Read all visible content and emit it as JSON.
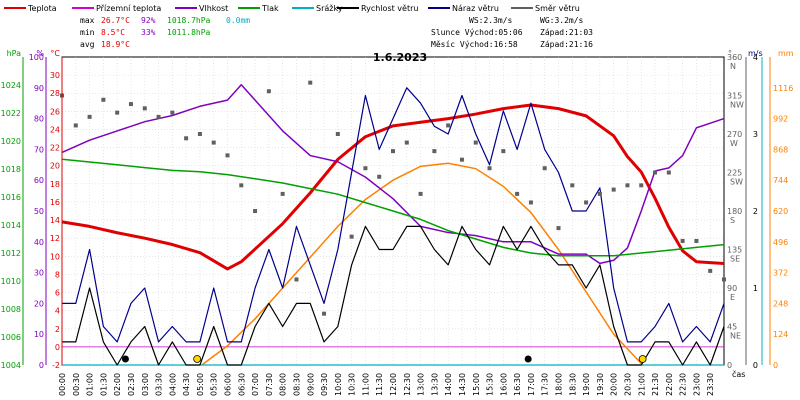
{
  "chart_data": {
    "type": "line",
    "title": "1.6.2023",
    "grid": true,
    "legend": [
      {
        "name": "Teplota",
        "color": "#e00000"
      },
      {
        "name": "Přízemní teplota",
        "color": "#d000d0"
      },
      {
        "name": "Vlhkost",
        "color": "#8000c0"
      },
      {
        "name": "Tlak",
        "color": "#00a000"
      },
      {
        "name": "Srážky",
        "color": "#00b0c0"
      },
      {
        "name": "Rychlost větru",
        "color": "#000000"
      },
      {
        "name": "Náraz větru",
        "color": "#00008b"
      },
      {
        "name": "Směr větru",
        "color": "#606060"
      }
    ],
    "stats": {
      "max": {
        "label": "max",
        "temp": "26.7°C",
        "hum": "92%",
        "press": "1018.7hPa",
        "rain": "0.0mm"
      },
      "min": {
        "label": "min",
        "temp": "8.5°C",
        "hum": "33%",
        "press": "1011.8hPa"
      },
      "avg": {
        "label": "avg",
        "temp": "18.9°C"
      }
    },
    "wind_info": {
      "ws": "WS:2.3m/s",
      "wg": "WG:3.2m/s"
    },
    "sun_info": {
      "sunrise": "Slunce Východ:05:06",
      "sunset": "Západ:21:03"
    },
    "moon_info": {
      "moonrise": "Měsíc Východ:16:58",
      "moonset": "Západ:21:16"
    },
    "axes": {
      "hpa": {
        "label": "hPa",
        "ticks": [
          "1004",
          "1006",
          "1008",
          "1010",
          "1012",
          "1014",
          "1016",
          "1018",
          "1020",
          "1022",
          "1024"
        ],
        "range": [
          1004,
          1026
        ]
      },
      "percent": {
        "label": "%",
        "ticks": [
          "0",
          "10",
          "20",
          "30",
          "40",
          "50",
          "60",
          "70",
          "80",
          "90",
          "100"
        ],
        "range": [
          0,
          100
        ]
      },
      "celsius": {
        "label": "°C",
        "ticks": [
          "-2",
          "0",
          "2",
          "4",
          "6",
          "8",
          "10",
          "12",
          "14",
          "16",
          "18",
          "20",
          "22",
          "24",
          "26",
          "28",
          "30"
        ],
        "range": [
          -2,
          32
        ]
      },
      "direction": {
        "label": "°",
        "ticks": [
          "0",
          "45\nNE",
          "90\nE",
          "135\nSE",
          "180\nS",
          "225\nSW",
          "270\nW",
          "315\nNW",
          "360\nN"
        ],
        "range": [
          0,
          360
        ]
      },
      "ms": {
        "label": "m/s",
        "ticks": [
          "0",
          "1",
          "2",
          "3",
          "4"
        ],
        "range": [
          0,
          4
        ]
      },
      "mm": {
        "label": "mm",
        "ticks": [
          "0",
          "124",
          "248",
          "372",
          "496",
          "620",
          "744",
          "868",
          "992",
          "1116"
        ],
        "range": [
          0,
          1240
        ]
      },
      "x": {
        "label": "čas",
        "ticks": [
          "00:00",
          "00:30",
          "01:00",
          "01:30",
          "02:00",
          "02:30",
          "03:00",
          "03:30",
          "04:00",
          "04:30",
          "05:00",
          "05:30",
          "06:00",
          "06:30",
          "07:00",
          "07:30",
          "08:00",
          "08:30",
          "09:00",
          "09:30",
          "10:00",
          "10:30",
          "11:00",
          "11:30",
          "12:00",
          "12:30",
          "13:00",
          "13:30",
          "14:00",
          "14:30",
          "15:00",
          "15:30",
          "16:00",
          "16:30",
          "17:00",
          "17:30",
          "18:00",
          "18:30",
          "19:00",
          "19:30",
          "20:00",
          "20:30",
          "21:00",
          "21:30",
          "22:00",
          "22:30",
          "23:00",
          "23:30"
        ]
      }
    },
    "series": [
      {
        "name": "Teplota",
        "unit": "°C",
        "color": "#e00000",
        "x": [
          0,
          1,
          2,
          3,
          4,
          5,
          5.5,
          6,
          6.5,
          7,
          8,
          9,
          10,
          11,
          12,
          13,
          14,
          15,
          16,
          17,
          18,
          19,
          20,
          20.5,
          21,
          21.5,
          22,
          22.5,
          23,
          24
        ],
        "y": [
          13.8,
          13.3,
          12.6,
          12.0,
          11.3,
          10.4,
          9.5,
          8.6,
          9.4,
          10.8,
          13.6,
          17.0,
          20.7,
          23.2,
          24.4,
          24.8,
          25.2,
          25.7,
          26.3,
          26.7,
          26.3,
          25.5,
          23.3,
          21.0,
          19.3,
          16.4,
          13.2,
          10.6,
          9.4,
          9.2
        ]
      },
      {
        "name": "Vlhkost",
        "unit": "%",
        "color": "#8000c0",
        "x": [
          0,
          1,
          2,
          3,
          4,
          5,
          6,
          6.5,
          7,
          8,
          9,
          10,
          11,
          12,
          13,
          14,
          15,
          16,
          17,
          18,
          19,
          19.5,
          20,
          20.5,
          21,
          21.5,
          22,
          22.5,
          23,
          24
        ],
        "y": [
          69,
          73,
          76,
          79,
          81,
          84,
          86,
          91,
          86,
          76,
          68,
          66,
          61,
          54,
          45,
          43,
          42,
          40,
          40,
          36,
          36,
          33,
          34,
          38,
          50,
          63,
          64,
          68,
          77,
          80
        ]
      },
      {
        "name": "Tlak",
        "unit": "hPa",
        "color": "#00a000",
        "x": [
          0,
          1,
          2,
          3,
          4,
          5,
          6,
          7,
          8,
          9,
          10,
          11,
          12,
          13,
          14,
          15,
          16,
          17,
          18,
          19,
          20,
          21,
          22,
          23,
          24
        ],
        "y": [
          1018.7,
          1018.5,
          1018.3,
          1018.1,
          1017.9,
          1017.8,
          1017.6,
          1017.3,
          1017.0,
          1016.6,
          1016.2,
          1015.6,
          1015.0,
          1014.4,
          1013.6,
          1013.0,
          1012.4,
          1012.0,
          1011.8,
          1011.8,
          1011.8,
          1012.0,
          1012.2,
          1012.4,
          1012.6
        ]
      },
      {
        "name": "Srážky",
        "unit": "mm",
        "color": "#00b0c0",
        "x": [
          0,
          24
        ],
        "y": [
          0,
          0
        ]
      },
      {
        "name": "Rychlost větru",
        "unit": "m/s",
        "color": "#000000",
        "x": [
          0,
          0.5,
          1,
          1.5,
          2,
          2.5,
          3,
          3.5,
          4,
          4.5,
          5,
          5.5,
          6,
          6.5,
          7,
          7.5,
          8,
          8.5,
          9,
          9.5,
          10,
          10.5,
          11,
          11.5,
          12,
          12.5,
          13,
          13.5,
          14,
          14.5,
          15,
          15.5,
          16,
          16.5,
          17,
          17.5,
          18,
          18.5,
          19,
          19.5,
          20,
          20.5,
          21,
          21.5,
          22,
          22.5,
          23,
          23.5,
          24
        ],
        "y": [
          0.3,
          0.3,
          1.0,
          0.3,
          0,
          0.3,
          0.5,
          0,
          0.3,
          0,
          0,
          0.5,
          0,
          0,
          0.5,
          0.8,
          0.5,
          0.8,
          0.8,
          0.3,
          0.5,
          1.3,
          1.8,
          1.5,
          1.5,
          1.8,
          1.8,
          1.5,
          1.3,
          1.8,
          1.5,
          1.3,
          1.8,
          1.5,
          1.8,
          1.5,
          1.3,
          1.3,
          1.0,
          1.3,
          0.5,
          0,
          0,
          0.3,
          0.3,
          0,
          0.3,
          0,
          0.5
        ]
      },
      {
        "name": "Náraz větru",
        "unit": "m/s",
        "color": "#00008b",
        "x": [
          0,
          0.5,
          1,
          1.5,
          2,
          2.5,
          3,
          3.5,
          4,
          4.5,
          5,
          5.5,
          6,
          6.5,
          7,
          7.5,
          8,
          8.5,
          9,
          9.5,
          10,
          10.5,
          11,
          11.5,
          12,
          12.5,
          13,
          13.5,
          14,
          14.5,
          15,
          15.5,
          16,
          16.5,
          17,
          17.5,
          18,
          18.5,
          19,
          19.5,
          20,
          20.5,
          21,
          21.5,
          22,
          22.5,
          23,
          23.5,
          24
        ],
        "y": [
          0.8,
          0.8,
          1.5,
          0.5,
          0.3,
          0.8,
          1.0,
          0.3,
          0.5,
          0.3,
          0.3,
          1.0,
          0.3,
          0.3,
          1.0,
          1.5,
          1.0,
          1.8,
          1.3,
          0.8,
          1.5,
          2.5,
          3.5,
          2.8,
          3.2,
          3.6,
          3.4,
          3.1,
          3.0,
          3.5,
          3.0,
          2.6,
          3.3,
          2.8,
          3.4,
          2.8,
          2.5,
          2.0,
          2.0,
          2.3,
          1.0,
          0.3,
          0.3,
          0.5,
          0.8,
          0.3,
          0.5,
          0.3,
          0.8
        ]
      },
      {
        "name": "Směr větru",
        "unit": "°",
        "color": "#606060",
        "x": [
          0,
          0.5,
          1,
          1.5,
          2,
          2.5,
          3,
          3.5,
          4,
          4.5,
          5,
          5.5,
          6,
          6.5,
          7,
          7.5,
          8,
          8.5,
          9,
          9.5,
          10,
          10.5,
          11,
          11.5,
          12,
          12.5,
          13,
          13.5,
          14,
          14.5,
          15,
          15.5,
          16,
          16.5,
          17,
          17.5,
          18,
          18.5,
          19,
          19.5,
          20,
          20.5,
          21,
          21.5,
          22,
          22.5,
          23,
          23.5,
          24
        ],
        "y": [
          315,
          280,
          290,
          310,
          295,
          305,
          300,
          290,
          295,
          265,
          270,
          260,
          245,
          210,
          180,
          320,
          200,
          100,
          330,
          60,
          270,
          150,
          230,
          220,
          250,
          260,
          200,
          250,
          280,
          240,
          260,
          230,
          250,
          200,
          190,
          230,
          160,
          210,
          190,
          200,
          205,
          210,
          210,
          225,
          225,
          145,
          145,
          110,
          100
        ]
      }
    ],
    "daylight_curve": {
      "name": "Slunce",
      "color": "#ff8000",
      "x": [
        5.07,
        6,
        7,
        8,
        9,
        10,
        11,
        12,
        13,
        14,
        15,
        16,
        17,
        18,
        19,
        20,
        21.05
      ],
      "y": [
        0,
        25,
        60,
        100,
        140,
        180,
        215,
        240,
        258,
        262,
        255,
        232,
        198,
        150,
        95,
        40,
        0
      ]
    },
    "markers": [
      {
        "time": 2.3,
        "symbol": "moon-new"
      },
      {
        "time": 4.9,
        "symbol": "sun-rise"
      },
      {
        "time": 16.9,
        "symbol": "moon"
      },
      {
        "time": 21.05,
        "symbol": "sun-set"
      }
    ]
  }
}
